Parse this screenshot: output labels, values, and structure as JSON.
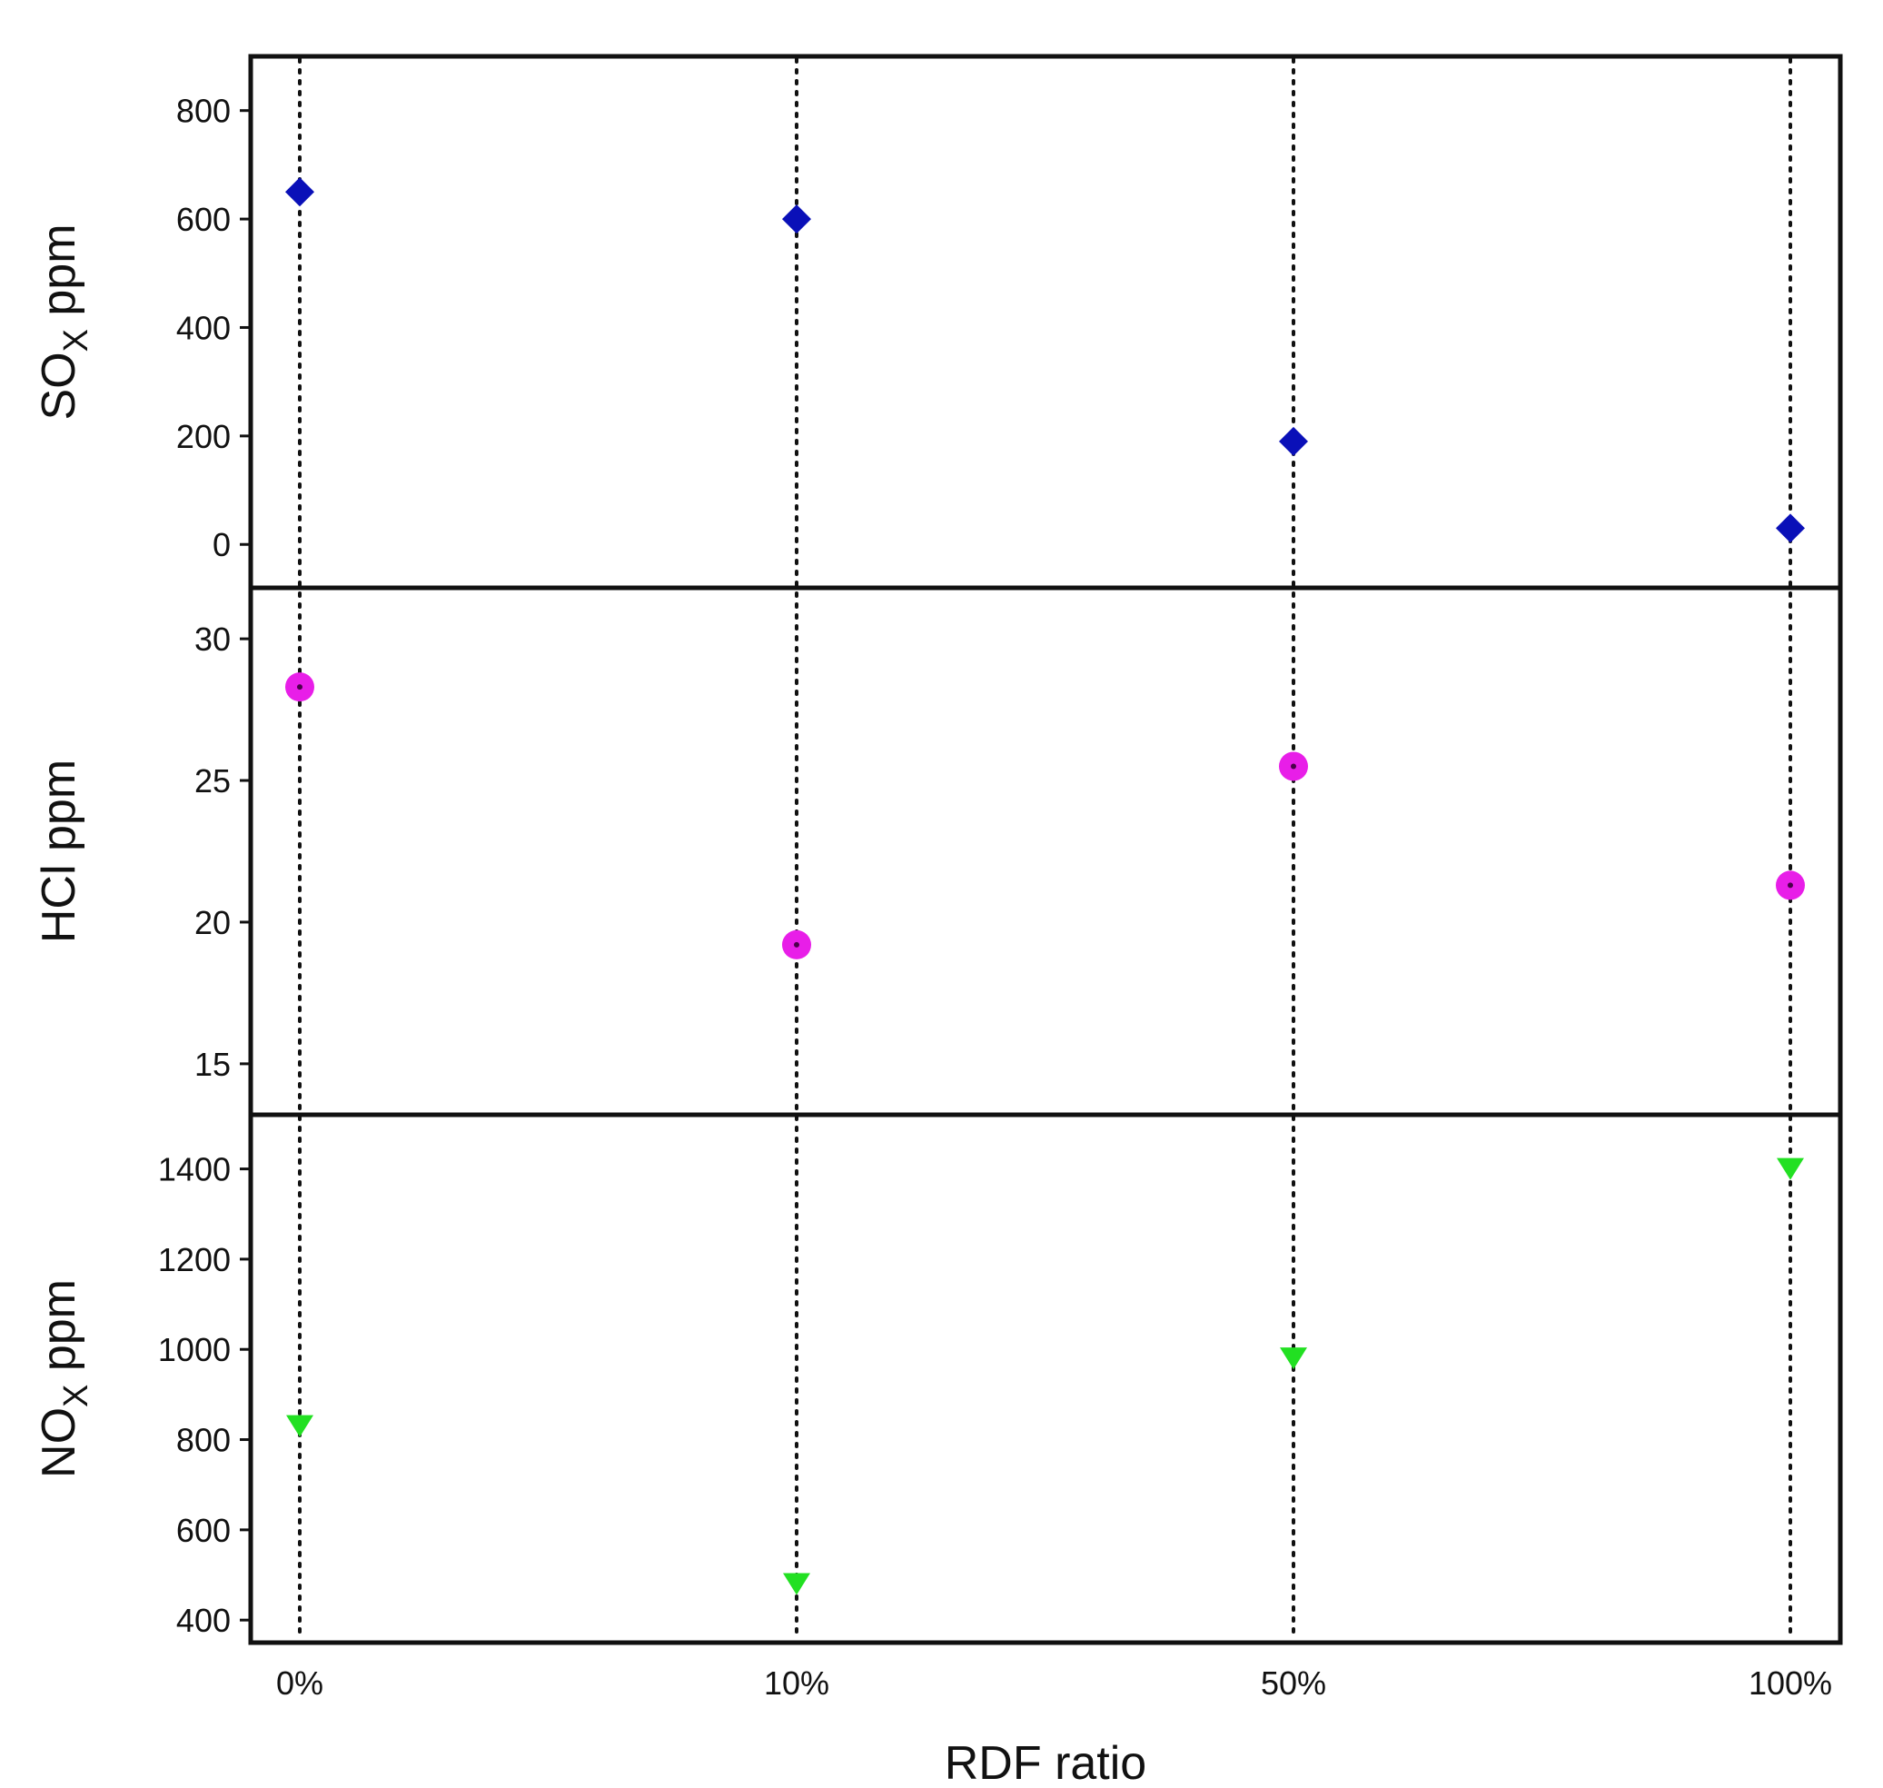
{
  "chart_data": {
    "type": "scatter",
    "xlabel": "RDF ratio",
    "categories": [
      "0%",
      "10%",
      "50%",
      "100%"
    ],
    "grid": "vertical dotted lines at each category",
    "panels": [
      {
        "id": "sox",
        "ylabel_main": "SO",
        "ylabel_sub": "X",
        "ylabel_unit": " ppm",
        "ylim": [
          -80,
          900
        ],
        "yticks": [
          0,
          200,
          400,
          600,
          800
        ],
        "marker": "diamond",
        "color": "#0a10b8",
        "values": [
          650,
          600,
          190,
          30
        ]
      },
      {
        "id": "hcl",
        "ylabel_main": "HCl ppm",
        "ylabel_sub": "",
        "ylabel_unit": "",
        "ylim": [
          13.2,
          31.8
        ],
        "yticks": [
          15,
          20,
          25,
          30
        ],
        "marker": "circle",
        "color": "#e81ee8",
        "values": [
          28.3,
          19.2,
          25.5,
          21.3
        ]
      },
      {
        "id": "nox",
        "ylabel_main": "NO",
        "ylabel_sub": "X",
        "ylabel_unit": " ppm",
        "ylim": [
          350,
          1520
        ],
        "yticks": [
          400,
          600,
          800,
          1000,
          1200,
          1400
        ],
        "marker": "triangle-down",
        "color": "#22e022",
        "values": [
          830,
          480,
          980,
          1400
        ]
      }
    ]
  }
}
